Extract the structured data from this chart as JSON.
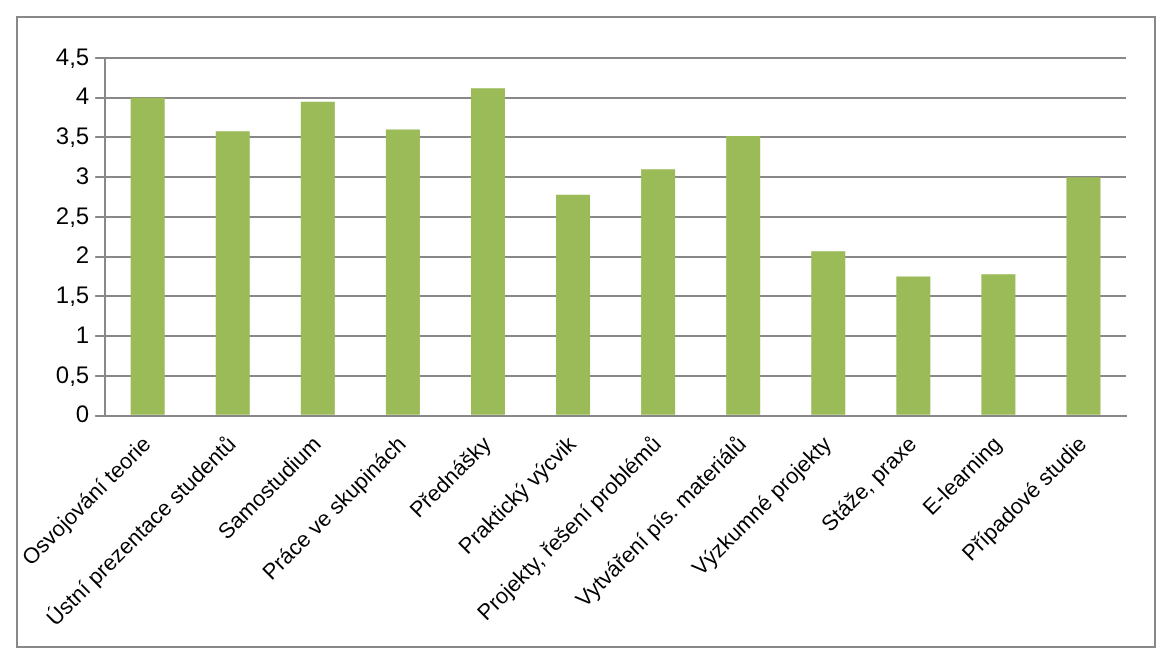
{
  "chart_data": {
    "type": "bar",
    "categories": [
      "Osvojování teorie",
      "Ústní prezentace studentů",
      "Samostudium",
      "Práce ve skupinách",
      "Přednášky",
      "Praktický výcvik",
      "Projekty, řešení problémů",
      "Vytváření pís. materiálů",
      "Výzkumné projekty",
      "Stáže, praxe",
      "E-learning",
      "Případové studie"
    ],
    "values": [
      4.0,
      3.58,
      3.95,
      3.6,
      4.12,
      2.78,
      3.1,
      3.52,
      2.07,
      1.75,
      1.78,
      3.0
    ],
    "color": "#9bbb59",
    "ylim": [
      0,
      4.5
    ],
    "yticks": [
      0,
      {
        "value": 0.5,
        "label": "0,5"
      },
      1,
      {
        "value": 1.5,
        "label": "1,5"
      },
      2,
      {
        "value": 2.5,
        "label": "2,5"
      },
      3,
      {
        "value": 3.5,
        "label": "3,5"
      },
      4,
      {
        "value": 4.5,
        "label": "4,5"
      }
    ],
    "grid": "y",
    "legend": false
  }
}
